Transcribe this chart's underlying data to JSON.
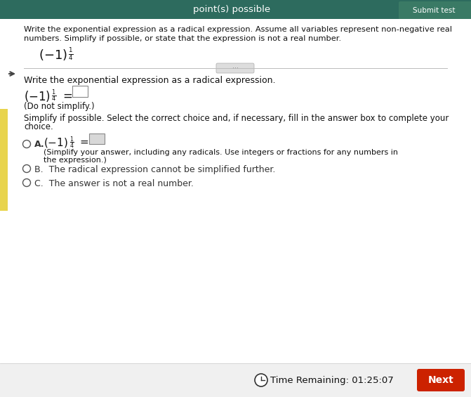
{
  "bg_color": "#e8e8e8",
  "header_bg": "#2d6b5e",
  "header_text": "point(s) possible",
  "main_bg": "#ffffff",
  "section1_line1": "Write the exponential expression as a radical expression. Assume all variables represent non-negative real",
  "section1_line2": "numbers. Simplify if possible, or state that the expression is not a real number.",
  "section2_title": "Write the exponential expression as a radical expression.",
  "section2_note": "(Do not simplify.)",
  "section3_title1": "Simplify if possible. Select the correct choice and, if necessary, fill in the answer box to complete your",
  "section3_title2": "choice.",
  "choice_A_note1": "(Simplify your answer, including any radicals. Use integers or fractions for any numbers in",
  "choice_A_note2": "the expression.)",
  "choice_B": "The radical expression cannot be simplified further.",
  "choice_C": "The answer is not a real number.",
  "timer_text": "Time Remaining: 01:25:07",
  "next_btn_text": "Next",
  "next_btn_color": "#cc2200",
  "yellow_bar_color": "#e8d44d",
  "font_color": "#111111",
  "light_gray": "#f2f2f2",
  "border_color": "#888888"
}
